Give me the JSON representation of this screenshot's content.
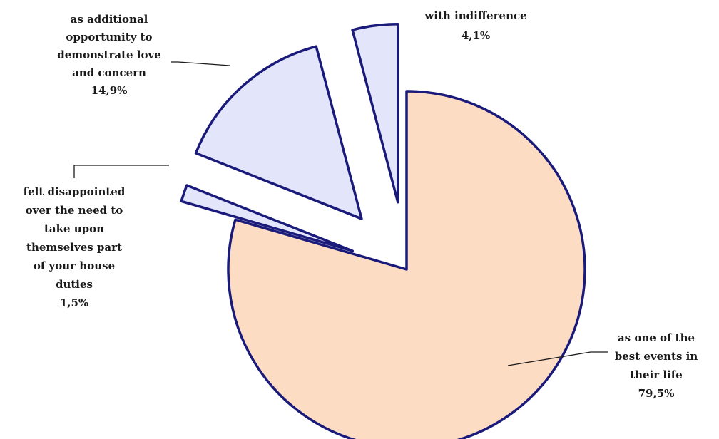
{
  "chart_data": {
    "type": "pie",
    "title": "",
    "slices": [
      {
        "lines": [
          "as one of the",
          "best events in",
          "their life"
        ],
        "pct_label": "79,5%",
        "value": 79.5,
        "color": "#fddcc4"
      },
      {
        "lines": [
          "felt disappointed",
          "over the need to",
          "take upon",
          "themselves part",
          "of your house",
          "duties"
        ],
        "pct_label": "1,5%",
        "value": 1.5,
        "color": "#e3e5fb"
      },
      {
        "lines": [
          "as additional",
          "opportunity to",
          "demonstrate love",
          "and concern"
        ],
        "pct_label": "14,9%",
        "value": 14.9,
        "color": "#e3e5fb"
      },
      {
        "lines": [
          "with indifference"
        ],
        "pct_label": "4,1%",
        "value": 4.1,
        "color": "#e3e5fb"
      }
    ],
    "edge_color": "#1a1a7a"
  }
}
